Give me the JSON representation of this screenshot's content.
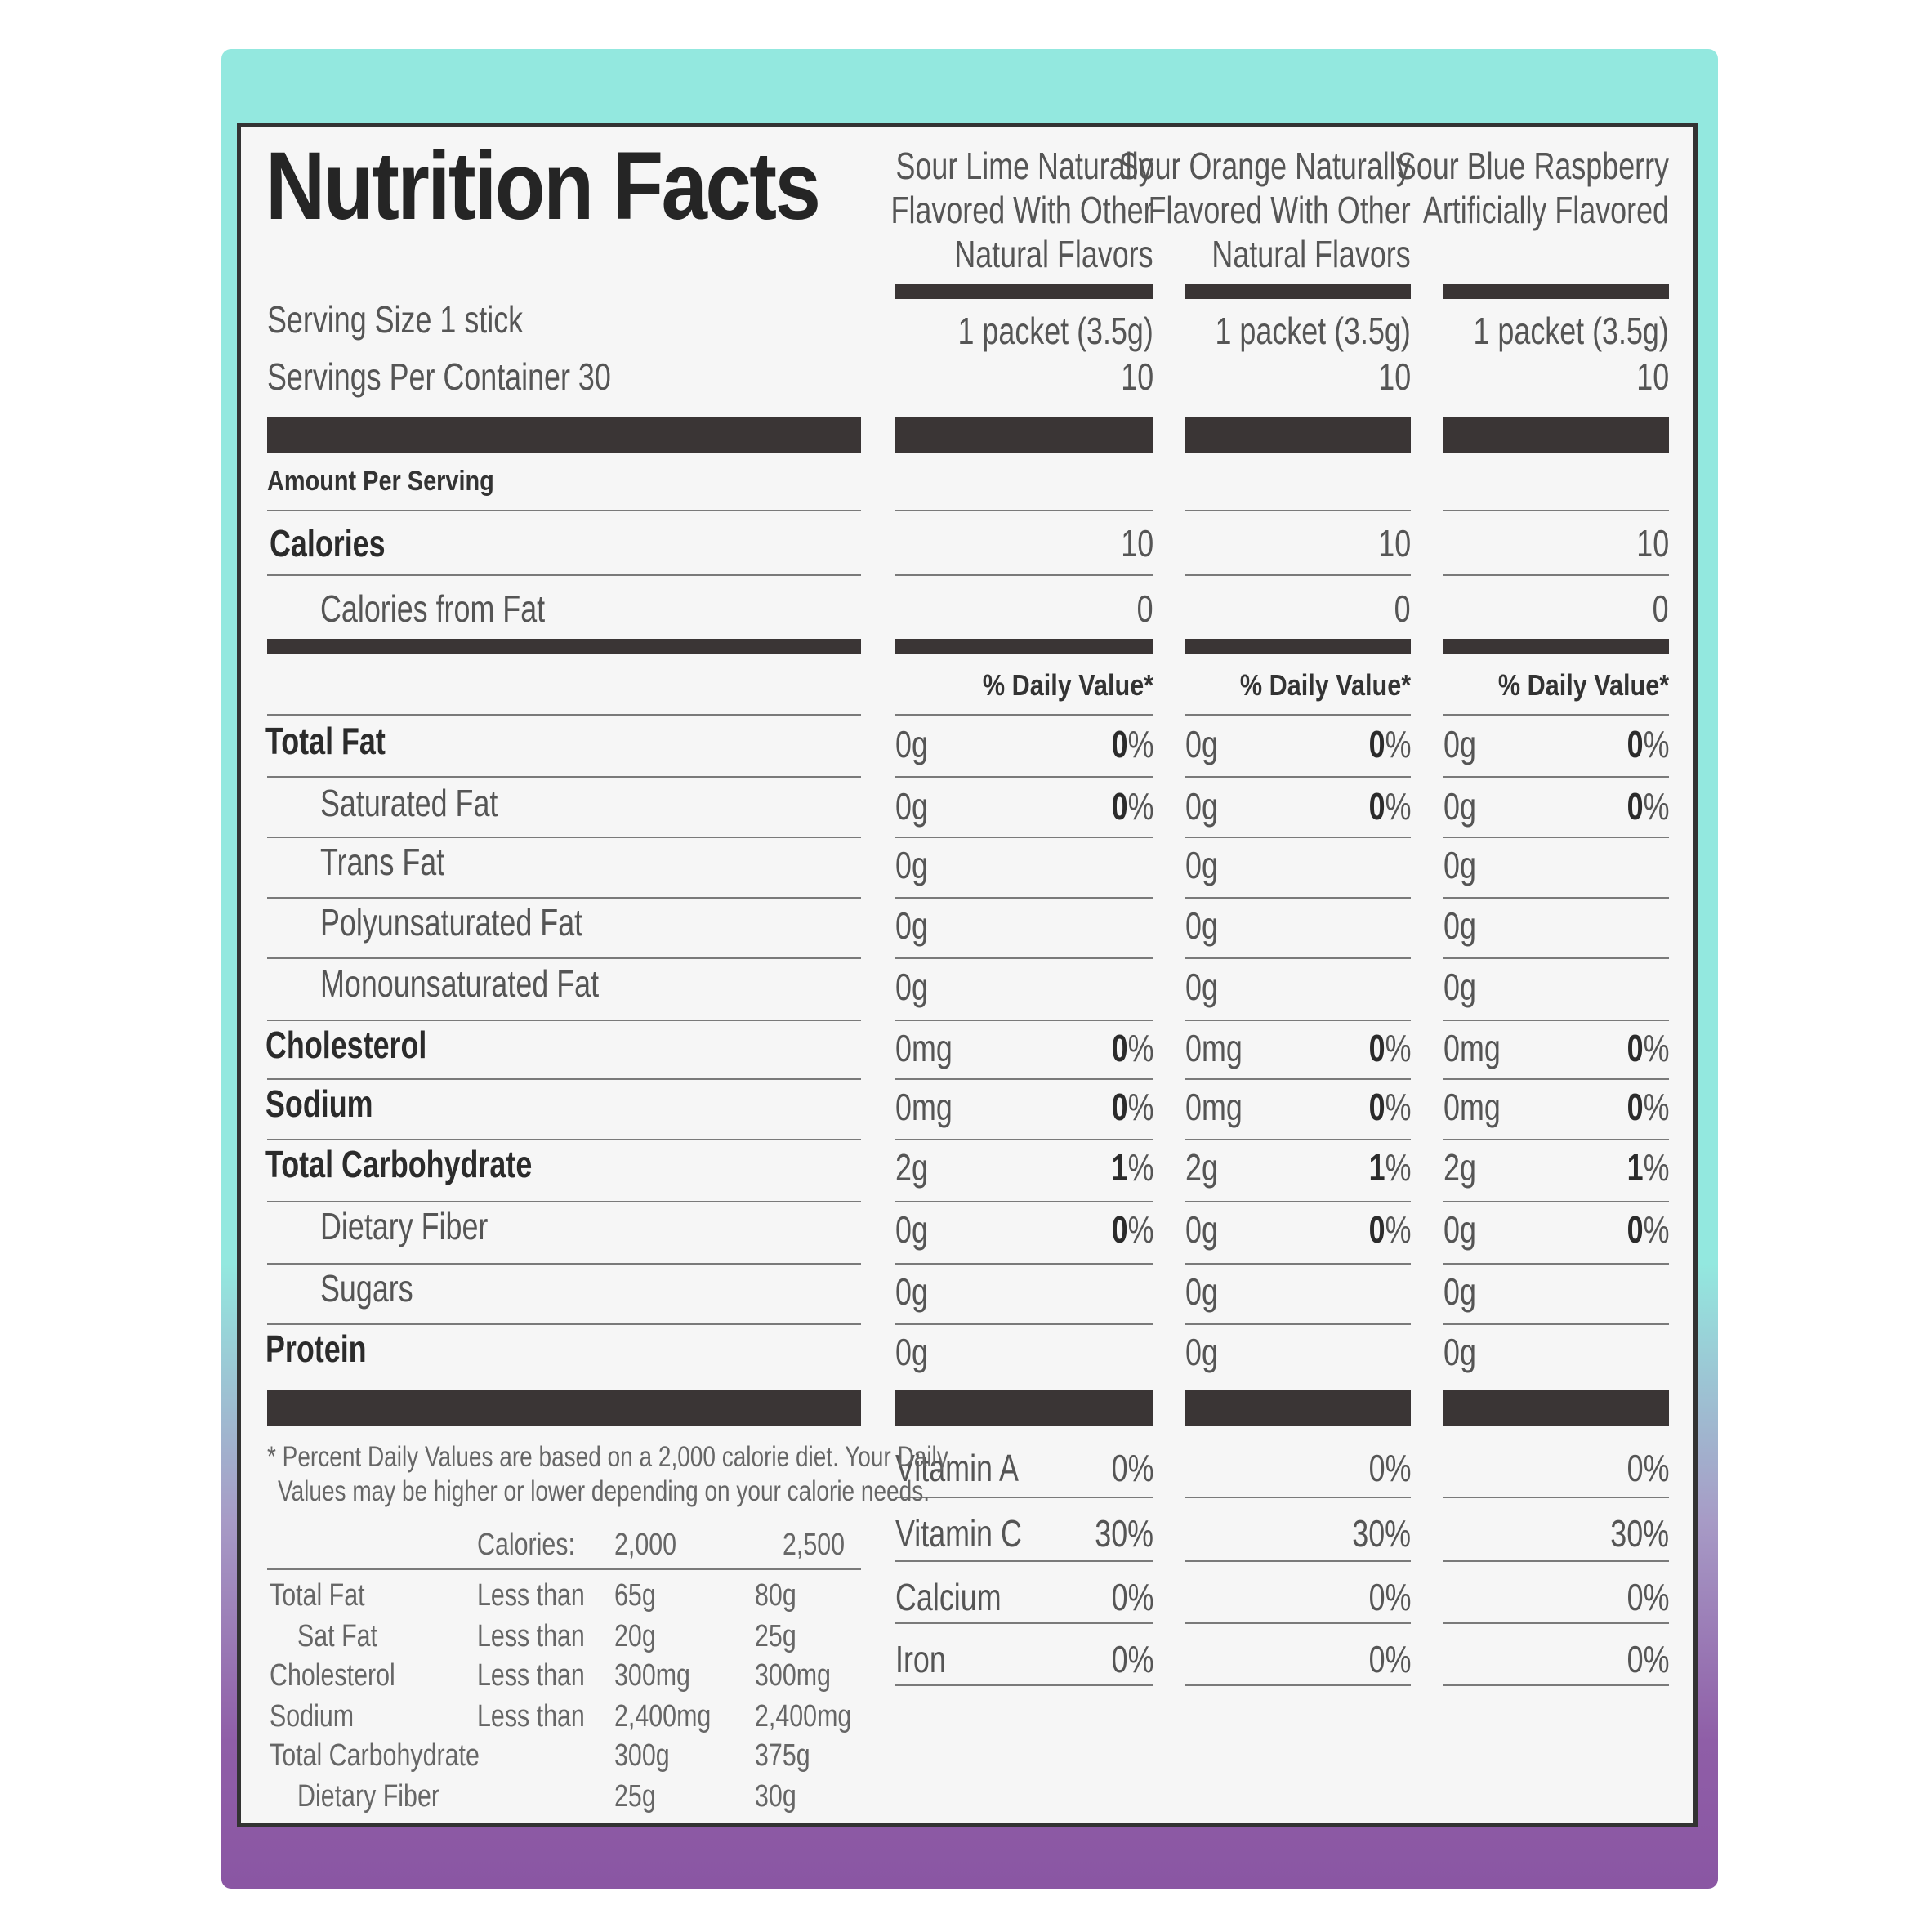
{
  "title": "Nutrition Facts",
  "serving_size": "Serving Size 1 stick",
  "servings_per_container": "Servings Per Container 30",
  "amount_per_serving": "Amount Per Serving",
  "calories_label": "Calories",
  "calories_from_fat_label": "Calories from Fat",
  "daily_value_header": "% Daily Value*",
  "columns": [
    {
      "name": "Sour Lime Naturally\nFlavored With Other\nNatural Flavors",
      "serving": "1 packet (3.5g)",
      "servings": "10",
      "calories": "10",
      "calories_from_fat": "0"
    },
    {
      "name": "Sour Orange Naturally\nFlavored With Other\nNatural Flavors",
      "serving": "1 packet (3.5g)",
      "servings": "10",
      "calories": "10",
      "calories_from_fat": "0"
    },
    {
      "name": "Sour Blue Raspberry\nArtificially Flavored",
      "serving": "1 packet (3.5g)",
      "servings": "10",
      "calories": "10",
      "calories_from_fat": "0"
    }
  ],
  "nutrients": [
    {
      "label": "Total Fat",
      "bold": true,
      "indent": false,
      "amount": "0g",
      "dv": "0%"
    },
    {
      "label": "Saturated Fat",
      "bold": false,
      "indent": true,
      "amount": "0g",
      "dv": "0%"
    },
    {
      "label": "Trans Fat",
      "bold": false,
      "indent": true,
      "amount": "0g",
      "dv": ""
    },
    {
      "label": "Polyunsaturated Fat",
      "bold": false,
      "indent": true,
      "amount": "0g",
      "dv": ""
    },
    {
      "label": "Monounsaturated Fat",
      "bold": false,
      "indent": true,
      "amount": "0g",
      "dv": ""
    },
    {
      "label": "Cholesterol",
      "bold": true,
      "indent": false,
      "amount": "0mg",
      "dv": "0%"
    },
    {
      "label": "Sodium",
      "bold": true,
      "indent": false,
      "amount": "0mg",
      "dv": "0%"
    },
    {
      "label": "Total Carbohydrate",
      "bold": true,
      "indent": false,
      "amount": "2g",
      "dv": "1%"
    },
    {
      "label": "Dietary Fiber",
      "bold": false,
      "indent": true,
      "amount": "0g",
      "dv": "0%"
    },
    {
      "label": "Sugars",
      "bold": false,
      "indent": true,
      "amount": "0g",
      "dv": ""
    },
    {
      "label": "Protein",
      "bold": true,
      "indent": false,
      "amount": "0g",
      "dv": ""
    }
  ],
  "vitamins": [
    {
      "label": "Vitamin A",
      "value": "0%"
    },
    {
      "label": "Vitamin C",
      "value": "30%"
    },
    {
      "label": "Calcium",
      "value": "0%"
    },
    {
      "label": "Iron",
      "value": "0%"
    }
  ],
  "footnote_line1": "* Percent Daily Values are based on a 2,000 calorie diet. Your Daily",
  "footnote_line2": "Values may be higher or lower depending on your calorie needs.",
  "reference_table": {
    "header": [
      "Calories:",
      "2,000",
      "2,500"
    ],
    "rows": [
      {
        "label": "Total Fat",
        "indent": false,
        "qualifier": "Less than",
        "v2000": "65g",
        "v2500": "80g"
      },
      {
        "label": "Sat Fat",
        "indent": true,
        "qualifier": "Less than",
        "v2000": "20g",
        "v2500": "25g"
      },
      {
        "label": "Cholesterol",
        "indent": false,
        "qualifier": "Less than",
        "v2000": "300mg",
        "v2500": "300mg"
      },
      {
        "label": "Sodium",
        "indent": false,
        "qualifier": "Less than",
        "v2000": "2,400mg",
        "v2500": "2,400mg"
      },
      {
        "label": "Total Carbohydrate",
        "indent": false,
        "qualifier": "",
        "v2000": "300g",
        "v2500": "375g"
      },
      {
        "label": "Dietary Fiber",
        "indent": true,
        "qualifier": "",
        "v2000": "25g",
        "v2500": "30g"
      }
    ]
  }
}
